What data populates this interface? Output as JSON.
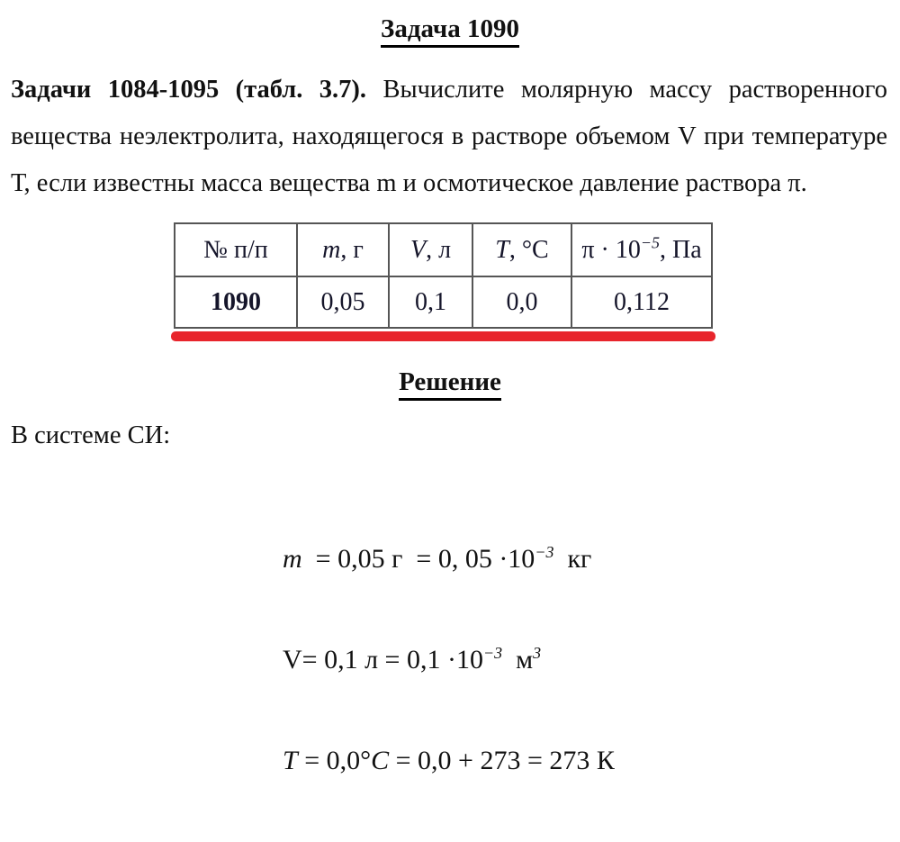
{
  "title": "Задача 1090",
  "problem": {
    "line1_bold": "Задачи 1084-1095 (табл. 3.7).",
    "line1_rest": " Вычислите молярную массу растворенного",
    "line2": "вещества неэлектролита, находящегося в растворе объемом V при температуре",
    "line3": "Т, если известны масса вещества m и осмотическое давление раствора π."
  },
  "table": {
    "header": {
      "num": "№ п/п",
      "m_var": "m",
      "m_unit": ", г",
      "v_var": "V",
      "v_unit": ", л",
      "t_var": "T",
      "t_unit": ", °C",
      "pi_pre": "π · 10",
      "pi_sup": "−5",
      "pi_post": ",  Па"
    },
    "row": {
      "num": "1090",
      "m": "0,05",
      "v": "0,1",
      "t": "0,0",
      "pi": "0,112"
    }
  },
  "solution": {
    "heading": "Решение",
    "si_label": "В системе СИ:",
    "line1": {
      "var": "m",
      "mid": "  = 0,05 г  = 0, 05 ·10",
      "sup": "−3",
      "tail": "  кг"
    },
    "line2": {
      "text": "V= 0,1 л = 0,1 ·10",
      "sup": "−3",
      "tail": "  м",
      "sup2": "3"
    },
    "line3": {
      "var": "T",
      "mid1": " = 0,0°",
      "var2": "C",
      "mid2": " = 0,0 + 273 = 273 К"
    }
  },
  "colors": {
    "accent_red": "#e8252c",
    "table_border": "#555555"
  }
}
